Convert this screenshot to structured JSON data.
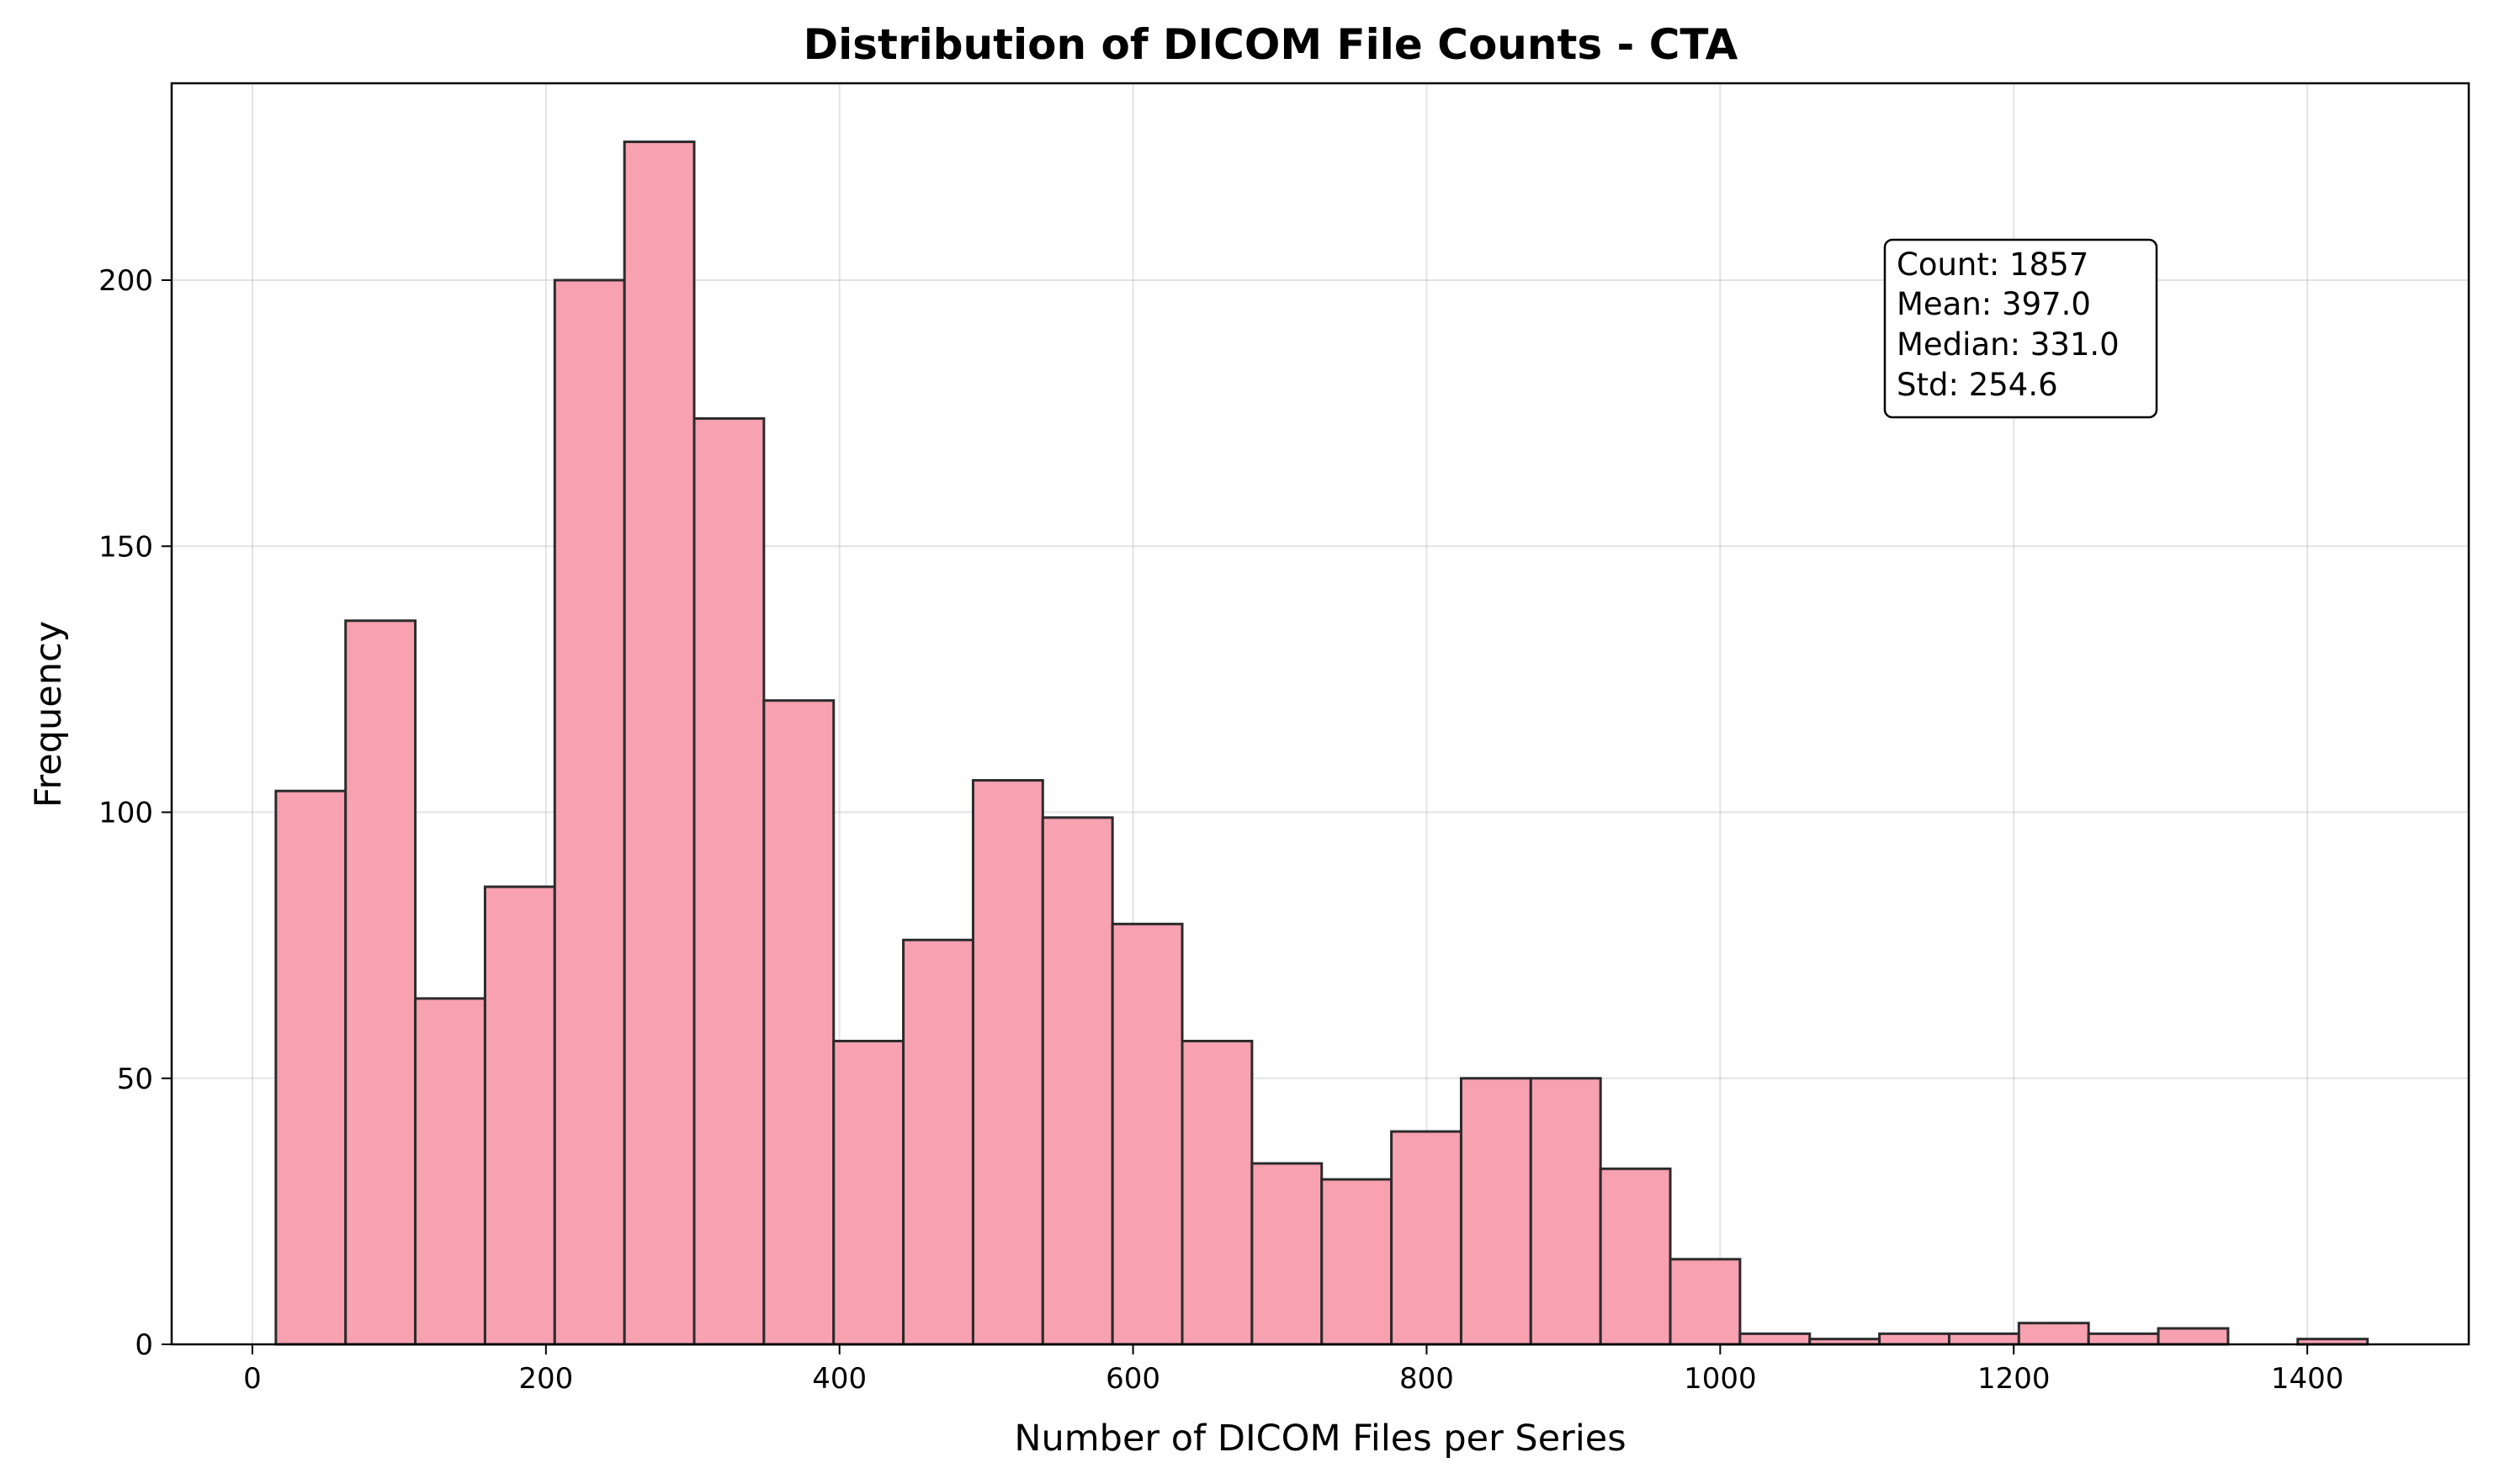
{
  "chart_data": {
    "type": "bar",
    "title": "Distribution of DICOM File Counts - CTA",
    "xlabel": "Number of DICOM Files per Series",
    "ylabel": "Frequency",
    "xlim": [
      -55,
      1510
    ],
    "ylim": [
      0,
      237
    ],
    "xticks": [
      0,
      200,
      400,
      600,
      800,
      1000,
      1200,
      1400
    ],
    "yticks": [
      0,
      50,
      100,
      150,
      200
    ],
    "grid": true,
    "bar_color": "#f7a1b1",
    "edge_color": "#2b2b2b",
    "bin_start": 16,
    "bin_width": 47.5,
    "values": [
      104,
      136,
      65,
      86,
      200,
      226,
      174,
      121,
      57,
      76,
      106,
      99,
      79,
      57,
      34,
      31,
      40,
      50,
      50,
      33,
      16,
      2,
      1,
      2,
      2,
      4,
      2,
      3,
      0,
      1
    ],
    "stats_box": {
      "lines": [
        "Count: 1857",
        "Mean: 397.0",
        "Median: 331.0",
        "Std: 254.6"
      ],
      "placement": "upper-right"
    }
  }
}
